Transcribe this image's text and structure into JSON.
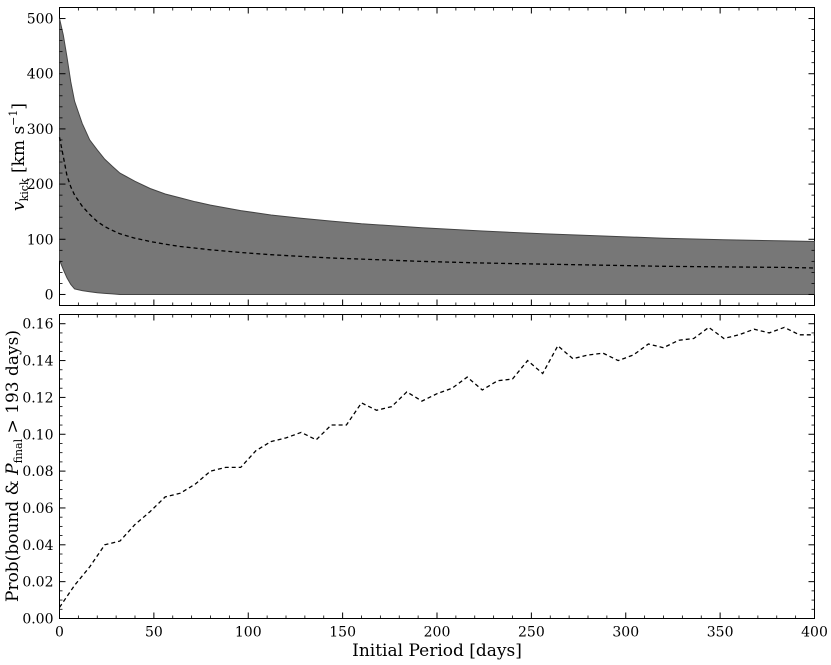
{
  "chart_data": [
    {
      "type": "area",
      "ylabel_main": "v",
      "ylabel_sub": "kick",
      "ylabel_unit": " [km s",
      "ylabel_exp": "−1",
      "ylabel_close": "]",
      "xlim": [
        0,
        400
      ],
      "ylim": [
        -20,
        520
      ],
      "xticks": [
        0,
        50,
        100,
        150,
        200,
        250,
        300,
        350,
        400
      ],
      "yticks": [
        0,
        100,
        200,
        300,
        400,
        500
      ],
      "ytick_labels": [
        "0",
        "100",
        "200",
        "300",
        "400",
        "500"
      ],
      "x": [
        0,
        2,
        4,
        6,
        8,
        12,
        16,
        20,
        24,
        28,
        32,
        40,
        48,
        56,
        64,
        72,
        80,
        96,
        112,
        128,
        144,
        160,
        192,
        224,
        256,
        288,
        320,
        352,
        384,
        400
      ],
      "band_upper": [
        500,
        470,
        430,
        385,
        350,
        310,
        280,
        262,
        245,
        232,
        220,
        205,
        192,
        182,
        175,
        168,
        162,
        152,
        144,
        138,
        133,
        128,
        121,
        115,
        110,
        106,
        102,
        99,
        97,
        96
      ],
      "band_lower": [
        62,
        45,
        30,
        18,
        10,
        7,
        5,
        3,
        2,
        1,
        0,
        0,
        0,
        0,
        0,
        0,
        0,
        0,
        0,
        0,
        0,
        0,
        0,
        0,
        0,
        0,
        0,
        0,
        0,
        0
      ],
      "median": [
        285,
        250,
        215,
        195,
        180,
        160,
        145,
        132,
        123,
        116,
        110,
        102,
        96,
        91,
        87,
        84,
        81,
        76,
        72,
        69,
        66,
        64,
        60,
        57,
        55,
        53,
        51,
        50,
        49,
        48
      ],
      "band_color": "#777777",
      "line_color": "#000000"
    },
    {
      "type": "line",
      "xlabel": "Initial Period [days]",
      "ylabel_prefix": "Prob(bound & ",
      "ylabel_var": "P",
      "ylabel_sub": "final",
      "ylabel_suffix": " > 193 days)",
      "xlim": [
        0,
        400
      ],
      "ylim": [
        0,
        0.165
      ],
      "xticks": [
        0,
        50,
        100,
        150,
        200,
        250,
        300,
        350,
        400
      ],
      "xtick_labels": [
        "0",
        "50",
        "100",
        "150",
        "200",
        "250",
        "300",
        "350",
        "400"
      ],
      "yticks": [
        0,
        0.02,
        0.04,
        0.06,
        0.08,
        0.1,
        0.12,
        0.14,
        0.16
      ],
      "ytick_labels": [
        "0.00",
        "0.02",
        "0.04",
        "0.06",
        "0.08",
        "0.10",
        "0.12",
        "0.14",
        "0.16"
      ],
      "x": [
        0,
        8,
        16,
        24,
        32,
        40,
        48,
        56,
        64,
        72,
        80,
        88,
        96,
        104,
        112,
        120,
        128,
        136,
        144,
        152,
        160,
        168,
        176,
        184,
        192,
        200,
        208,
        216,
        224,
        232,
        240,
        248,
        256,
        264,
        272,
        280,
        288,
        296,
        304,
        312,
        320,
        328,
        336,
        344,
        352,
        360,
        368,
        376,
        384,
        392,
        400
      ],
      "values": [
        0.006,
        0.018,
        0.028,
        0.04,
        0.042,
        0.051,
        0.058,
        0.066,
        0.068,
        0.073,
        0.08,
        0.082,
        0.082,
        0.091,
        0.096,
        0.098,
        0.101,
        0.097,
        0.105,
        0.105,
        0.117,
        0.113,
        0.115,
        0.123,
        0.118,
        0.122,
        0.125,
        0.131,
        0.124,
        0.129,
        0.13,
        0.14,
        0.133,
        0.148,
        0.141,
        0.143,
        0.144,
        0.14,
        0.143,
        0.149,
        0.147,
        0.151,
        0.152,
        0.158,
        0.152,
        0.154,
        0.157,
        0.155,
        0.158,
        0.154,
        0.154
      ],
      "line_color": "#000000"
    }
  ]
}
